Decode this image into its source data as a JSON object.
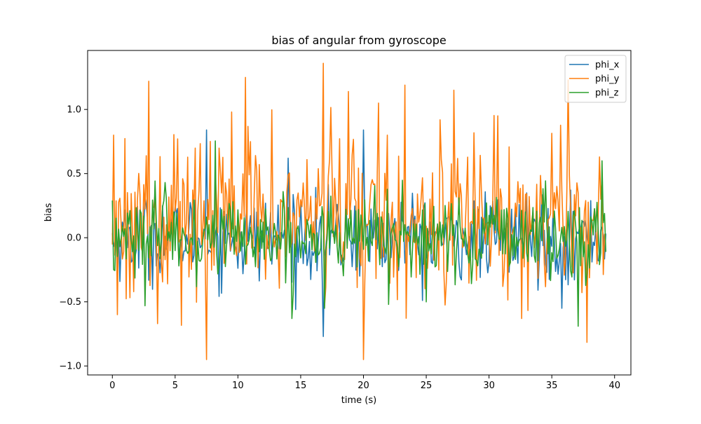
{
  "chart_data": {
    "type": "line",
    "title": "bias of angular from gyroscope",
    "xlabel": "time (s)",
    "ylabel": "bias",
    "xlim": [
      -1.97,
      41.3
    ],
    "ylim": [
      -1.07,
      1.46
    ],
    "x_ticks": [
      0,
      5,
      10,
      15,
      20,
      25,
      30,
      35,
      40
    ],
    "y_ticks": [
      -1.0,
      -0.5,
      0.0,
      0.5,
      1.0
    ],
    "x_tick_labels": [
      "0",
      "5",
      "10",
      "15",
      "20",
      "25",
      "30",
      "35",
      "40"
    ],
    "y_tick_labels": [
      "−1.0",
      "−0.5",
      "0.0",
      "0.5",
      "1.0"
    ],
    "grid": false,
    "legend_position": "top-right",
    "sample": {
      "t_start": 0,
      "t_end": 39.3,
      "dt": 0.1
    },
    "series": [
      {
        "name": "phi_x",
        "color": "#1f77b4",
        "mean": 0.0,
        "std": 0.16,
        "peaks": [
          [
            7.5,
            0.84
          ],
          [
            20.0,
            0.84
          ],
          [
            16.8,
            -0.77
          ],
          [
            35.8,
            -0.55
          ],
          [
            14.0,
            0.62
          ],
          [
            33.0,
            0.35
          ]
        ]
      },
      {
        "name": "phi_y",
        "color": "#ff7f0e",
        "mean": 0.17,
        "std": 0.32,
        "peaks": [
          [
            16.8,
            1.36
          ],
          [
            2.9,
            1.22
          ],
          [
            10.6,
            1.25
          ],
          [
            27.2,
            1.15
          ],
          [
            23.3,
            1.19
          ],
          [
            36.3,
            1.23
          ],
          [
            20.0,
            -0.95
          ],
          [
            7.5,
            -0.95
          ],
          [
            0.4,
            -0.6
          ],
          [
            3.6,
            -0.67
          ],
          [
            32.6,
            -0.63
          ],
          [
            0.1,
            0.8
          ],
          [
            18.8,
            1.14
          ],
          [
            21.2,
            1.05
          ],
          [
            9.5,
            0.98
          ],
          [
            38.9,
            0.3
          ]
        ]
      },
      {
        "name": "phi_z",
        "color": "#2ca02c",
        "mean": 0.0,
        "std": 0.17,
        "peaks": [
          [
            37.1,
            -0.69
          ],
          [
            14.3,
            -0.63
          ],
          [
            16.9,
            -0.55
          ],
          [
            22.0,
            -0.52
          ],
          [
            25.0,
            -0.5
          ],
          [
            39.0,
            0.6
          ],
          [
            0.0,
            0.29
          ],
          [
            13.6,
            0.36
          ]
        ]
      }
    ]
  }
}
